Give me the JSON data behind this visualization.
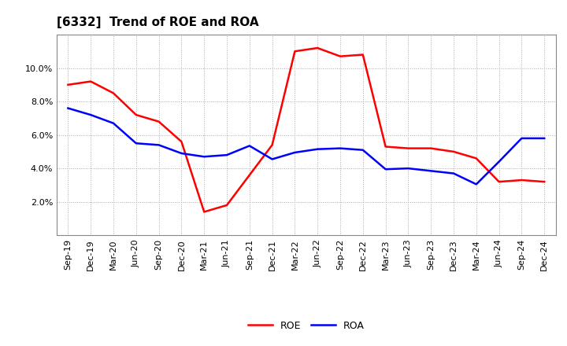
{
  "title": "[6332]  Trend of ROE and ROA",
  "x_labels": [
    "Sep-19",
    "Dec-19",
    "Mar-20",
    "Jun-20",
    "Sep-20",
    "Dec-20",
    "Mar-21",
    "Jun-21",
    "Sep-21",
    "Dec-21",
    "Mar-22",
    "Jun-22",
    "Sep-22",
    "Dec-22",
    "Mar-23",
    "Jun-23",
    "Sep-23",
    "Dec-23",
    "Mar-24",
    "Jun-24",
    "Sep-24",
    "Dec-24"
  ],
  "roe": [
    9.0,
    9.2,
    8.5,
    7.2,
    6.8,
    5.6,
    1.4,
    1.8,
    3.6,
    5.4,
    11.0,
    11.2,
    10.7,
    10.8,
    5.3,
    5.2,
    5.2,
    5.0,
    4.6,
    3.2,
    3.3,
    3.2
  ],
  "roa": [
    7.6,
    7.2,
    6.7,
    5.5,
    5.4,
    4.9,
    4.7,
    4.8,
    5.35,
    4.55,
    4.95,
    5.15,
    5.2,
    5.1,
    3.95,
    4.0,
    3.85,
    3.7,
    3.05,
    4.4,
    5.8,
    5.8
  ],
  "roe_color": "#ff0000",
  "roa_color": "#0000ff",
  "background_color": "#ffffff",
  "plot_bg_color": "#ffffff",
  "grid_color": "#aaaaaa",
  "ylim": [
    0,
    12
  ],
  "yticks": [
    2.0,
    4.0,
    6.0,
    8.0,
    10.0
  ],
  "title_fontsize": 11,
  "tick_fontsize": 8,
  "legend_labels": [
    "ROE",
    "ROA"
  ],
  "line_width": 1.8
}
